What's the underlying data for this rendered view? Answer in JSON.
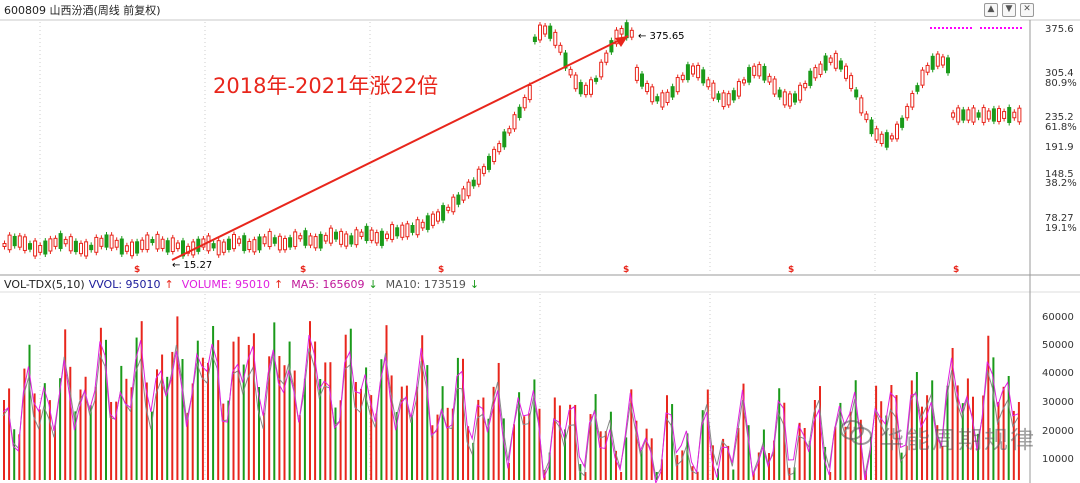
{
  "header": {
    "title": "600809 山西汾酒(周线 前复权)",
    "button_up": "▲",
    "button_down": "▼",
    "button_close": "✕"
  },
  "price_axis": {
    "labels": [
      "375.6",
      "305.4",
      "80.9%",
      "235.2",
      "61.8%",
      "191.9",
      "148.5",
      "38.2%",
      "78.27",
      "19.1%"
    ]
  },
  "price_annotations": {
    "high_label": "375.65",
    "low_label": "15.27",
    "headline": "2018年-2021年涨22倍"
  },
  "volume_bar": {
    "indicator": "VOL-TDX(5,10)",
    "vvol_label": "VVOL: 95010",
    "vvol_arrow": "↑",
    "volume_label": "VOLUME: 95010",
    "volume_arrow": "↑",
    "ma5_label": "MA5: 165609",
    "ma5_arrow": "↓",
    "ma10_label": "MA10: 173519",
    "ma10_arrow": "↓"
  },
  "volume_axis": {
    "labels": [
      "60000",
      "50000",
      "40000",
      "30000",
      "20000",
      "10000"
    ]
  },
  "watermark": {
    "text": "华能周期规律"
  },
  "colors": {
    "up": "#e8261c",
    "down": "#1a9a1a",
    "ma5": "#e020e0",
    "ma10": "#888888",
    "arrow": "#e8261c",
    "dotted_ref": "#ff00ff"
  }
}
